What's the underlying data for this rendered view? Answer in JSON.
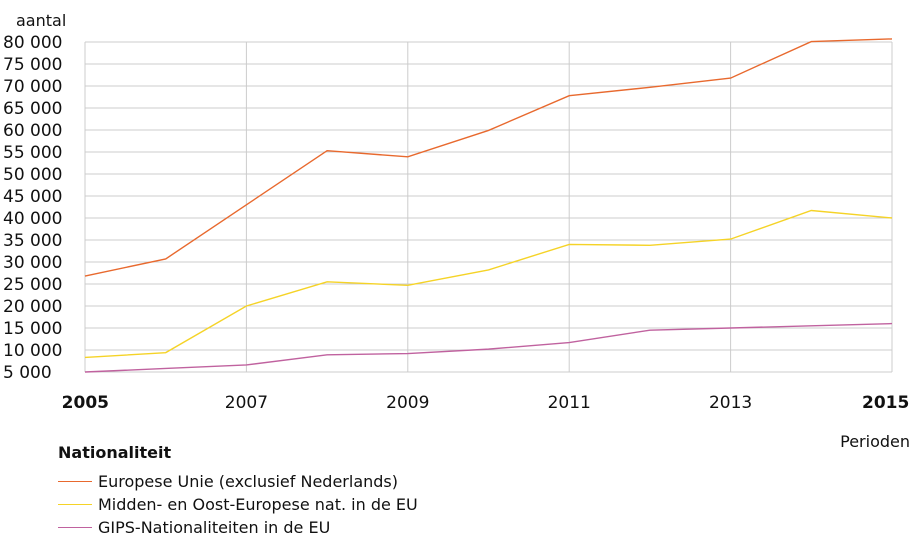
{
  "chart_data": {
    "type": "line",
    "ylabel": "aantal",
    "xlabel": "Perioden",
    "legend_title": "Nationaliteit",
    "legend_position": "bottom-left",
    "grid": true,
    "x": [
      2005,
      2006,
      2007,
      2008,
      2009,
      2010,
      2011,
      2012,
      2013,
      2014,
      2015
    ],
    "xlim": [
      2005,
      2015
    ],
    "ylim": [
      5000,
      80000
    ],
    "y_ticks": [
      5000,
      10000,
      15000,
      20000,
      25000,
      30000,
      35000,
      40000,
      45000,
      50000,
      55000,
      60000,
      65000,
      70000,
      75000,
      80000
    ],
    "y_tick_labels": [
      "5 000",
      "10 000",
      "15 000",
      "20 000",
      "25 000",
      "30 000",
      "35 000",
      "40 000",
      "45 000",
      "50 000",
      "55 000",
      "60 000",
      "65 000",
      "70 000",
      "75 000",
      "80 000"
    ],
    "x_ticks": [
      {
        "value": 2005,
        "label": "2005",
        "bold": true
      },
      {
        "value": 2007,
        "label": "2007",
        "bold": false
      },
      {
        "value": 2009,
        "label": "2009",
        "bold": false
      },
      {
        "value": 2011,
        "label": "2011",
        "bold": false
      },
      {
        "value": 2013,
        "label": "2013",
        "bold": false
      },
      {
        "value": 2015,
        "label": "2015",
        "bold": true
      }
    ],
    "series": [
      {
        "name": "Europese Unie (exclusief Nederlands)",
        "color": "#e8692e",
        "values": [
          26800,
          30700,
          43000,
          55300,
          53900,
          59900,
          67800,
          69700,
          71800,
          80100,
          80700
        ]
      },
      {
        "name": "Midden- en Oost-Europese nat. in de EU",
        "color": "#f5d327",
        "values": [
          8300,
          9400,
          20000,
          25500,
          24700,
          28200,
          34000,
          33800,
          35200,
          41700,
          40000
        ]
      },
      {
        "name": "GIPS-Nationaliteiten in de EU",
        "color": "#c0629f",
        "values": [
          5000,
          5800,
          6600,
          8900,
          9200,
          10200,
          11700,
          14500,
          15000,
          15500,
          16000
        ]
      }
    ]
  }
}
